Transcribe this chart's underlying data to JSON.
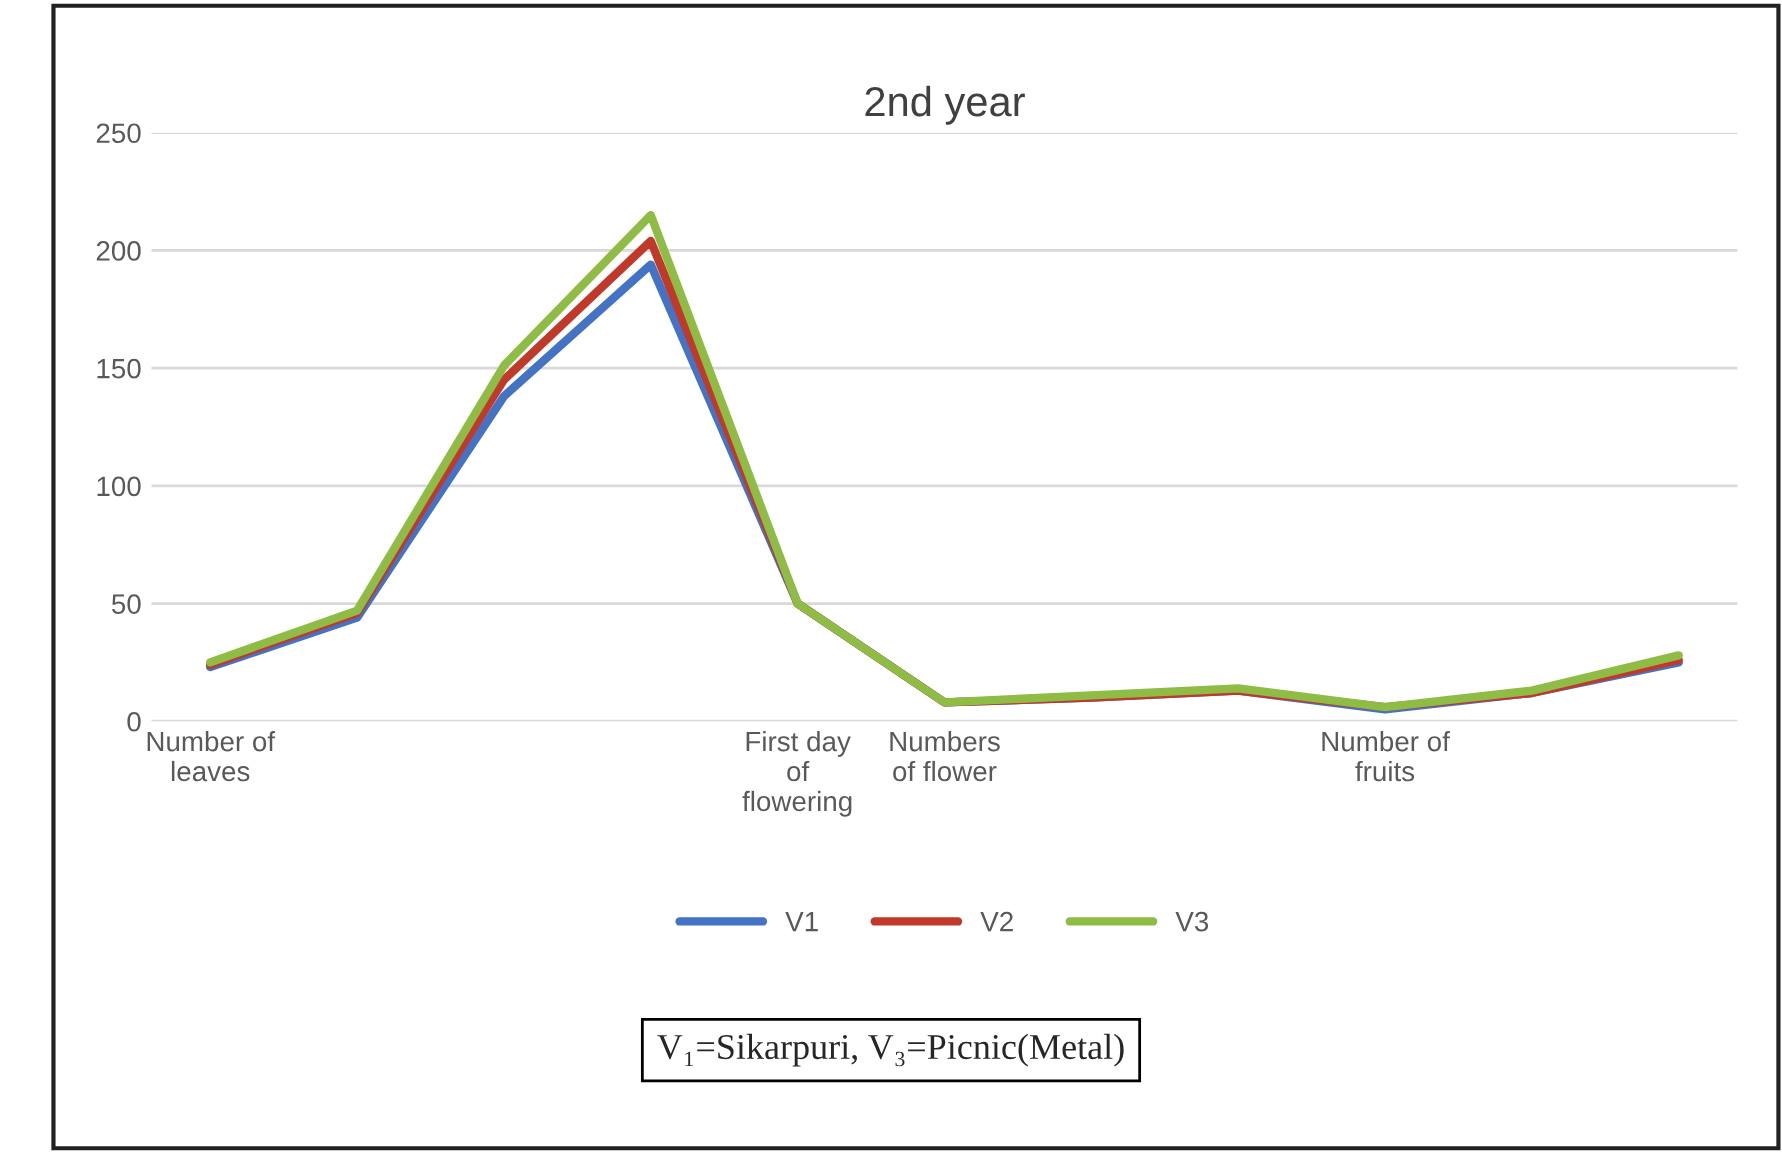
{
  "chart_data": {
    "type": "line",
    "title": "2nd year",
    "categories": [
      "Number of\nleaves",
      null,
      null,
      null,
      "First day\nof\nflowering",
      "Numbers\nof flower",
      null,
      null,
      "Number of\nfruits",
      null,
      null
    ],
    "series": [
      {
        "name": "V1",
        "color": "#4472c4",
        "values": [
          23,
          44,
          138,
          194,
          50,
          8,
          10,
          13,
          5,
          12,
          25
        ]
      },
      {
        "name": "V2",
        "color": "#c0392b",
        "values": [
          24,
          46,
          145,
          204,
          50,
          8,
          10,
          13,
          6,
          12,
          26
        ]
      },
      {
        "name": "V3",
        "color": "#8fbc45",
        "values": [
          25,
          47,
          151,
          215,
          50,
          8,
          11,
          14,
          6,
          13,
          28
        ]
      }
    ],
    "ylim": [
      0,
      250
    ],
    "yticks": [
      0,
      50,
      100,
      150,
      200,
      250
    ],
    "grid": "y",
    "legend": "bottom",
    "marker": "none",
    "line_style": "solid",
    "annotations": [
      "V₁=Sikarpuri, V₃=Picnic(Metal)"
    ]
  }
}
